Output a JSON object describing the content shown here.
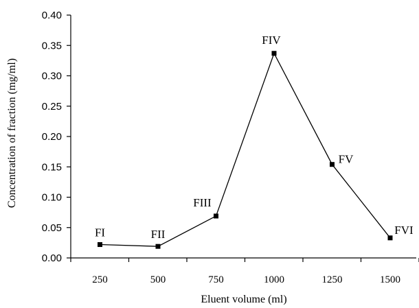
{
  "chart_data": {
    "type": "line",
    "xlabel": "Eluent volume (ml)",
    "ylabel": "Concentration of fraction (mg/ml)",
    "x": [
      250,
      500,
      750,
      1000,
      1250,
      1500
    ],
    "xticks": [
      "250",
      "500",
      "750",
      "1000",
      "1250",
      "1500"
    ],
    "yticks": [
      "0.00",
      "0.05",
      "0.10",
      "0.15",
      "0.20",
      "0.25",
      "0.30",
      "0.35",
      "0.40"
    ],
    "ylim": [
      0,
      0.4
    ],
    "grid": false,
    "series": [
      {
        "values": [
          0.022,
          0.019,
          0.069,
          0.337,
          0.154,
          0.033
        ],
        "point_labels": [
          "FI",
          "FII",
          "FIII",
          "FIV",
          "FV",
          "FVI"
        ]
      }
    ]
  }
}
